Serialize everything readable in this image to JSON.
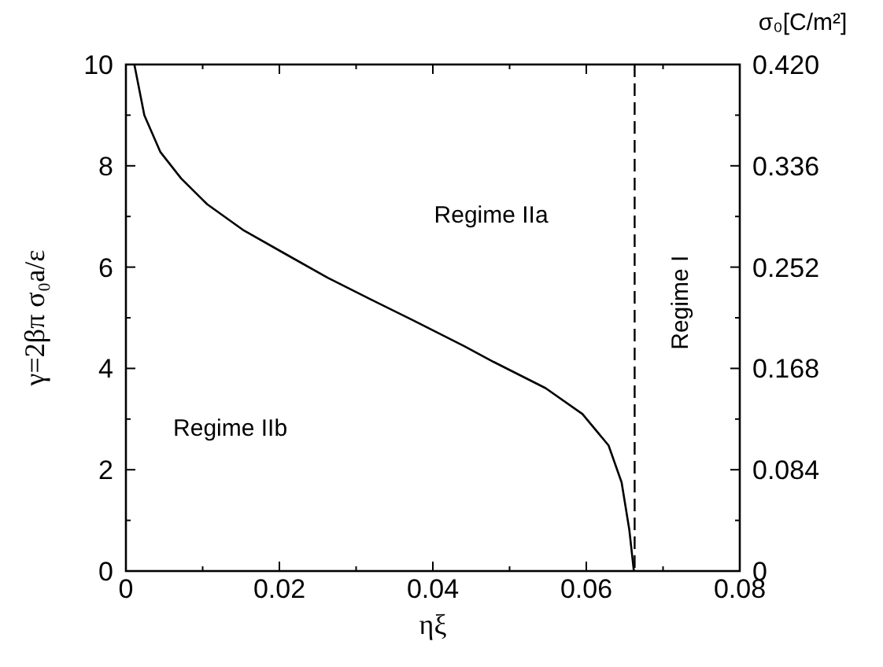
{
  "chart_data": {
    "type": "line",
    "xlabel": "ηξ",
    "ylabel": "γ=2βπ σ₀a/ε",
    "y2label": "σ₀[C/m²]",
    "xlim": [
      0,
      0.08
    ],
    "xticks": [
      0,
      {
        "value": 0.01,
        "label": null
      },
      0.02,
      {
        "value": 0.03,
        "label": null
      },
      0.04,
      {
        "value": 0.05,
        "label": null
      },
      0.06,
      {
        "value": 0.07,
        "label": null
      },
      0.08
    ],
    "ylim": [
      0,
      10
    ],
    "yticks": [
      0,
      {
        "value": 1,
        "label": null
      },
      2,
      {
        "value": 3,
        "label": null
      },
      4,
      {
        "value": 5,
        "label": null
      },
      6,
      {
        "value": 7,
        "label": null
      },
      8,
      {
        "value": 9,
        "label": null
      },
      10
    ],
    "y2lim": [
      0,
      0.42
    ],
    "y2ticks": [
      0,
      {
        "value": 0.042,
        "label": null
      },
      0.084,
      {
        "value": 0.126,
        "label": null
      },
      0.168,
      {
        "value": 0.21,
        "label": null
      },
      0.252,
      {
        "value": 0.294,
        "label": null
      },
      0.336,
      {
        "value": 0.378,
        "label": null
      },
      {
        "value": 0.42,
        "label": "0.420"
      }
    ],
    "series": [
      {
        "color": "#000000",
        "x": [
          0.0011,
          0.0024,
          0.0045,
          0.0072,
          0.0106,
          0.0154,
          0.0209,
          0.0263,
          0.0318,
          0.0373,
          0.0441,
          0.0479,
          0.0547,
          0.0595,
          0.0629,
          0.0646,
          0.0656,
          0.0662
        ],
        "values": [
          10,
          9.0,
          8.27,
          7.75,
          7.24,
          6.72,
          6.25,
          5.79,
          5.37,
          4.96,
          4.44,
          4.13,
          3.61,
          3.1,
          2.48,
          1.75,
          0.82,
          0
        ]
      }
    ],
    "ref_lines": [
      {
        "axis": "x",
        "value": 0.0663,
        "line_style": "dashed",
        "color": "#000000"
      }
    ],
    "annotations": [
      "Regime IIa",
      "Regime IIb",
      "Regime I"
    ],
    "grid": false,
    "marker": "none",
    "line_style": "solid"
  }
}
